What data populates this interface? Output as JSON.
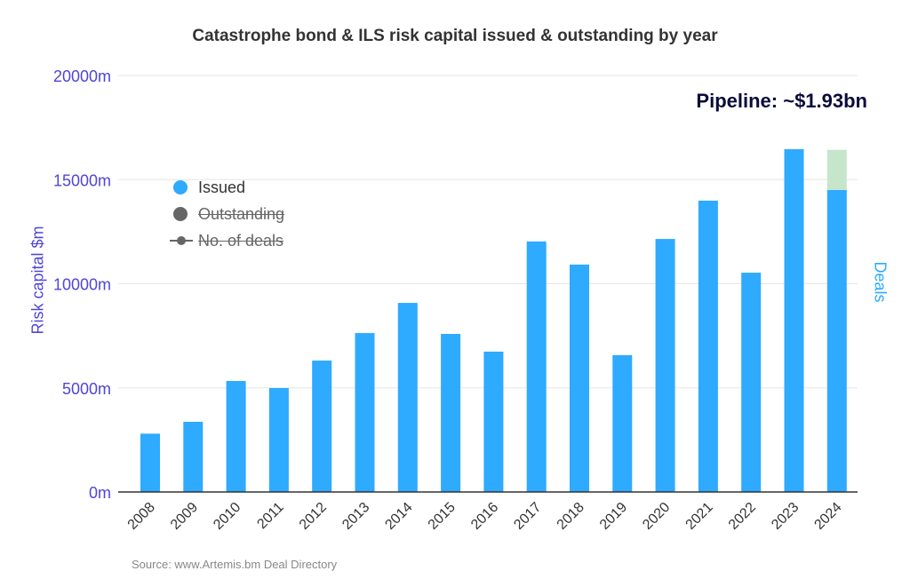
{
  "chart_data": {
    "type": "bar",
    "title": "Catastrophe bond & ILS risk capital issued & outstanding by year",
    "ylabel": "Risk capital $m",
    "y2label": "Deals",
    "ylim": [
      0,
      20000
    ],
    "yticks": [
      "0m",
      "5000m",
      "10000m",
      "15000m",
      "20000m"
    ],
    "yticks_values": [
      0,
      5000,
      10000,
      15000,
      20000
    ],
    "categories": [
      "2008",
      "2009",
      "2010",
      "2011",
      "2012",
      "2013",
      "2014",
      "2015",
      "2016",
      "2017",
      "2018",
      "2019",
      "2020",
      "2021",
      "2022",
      "2023",
      "2024"
    ],
    "series": [
      {
        "name": "Issued",
        "color": "#2eaaff",
        "values": [
          2800,
          3370,
          5330,
          4990,
          6310,
          7630,
          9080,
          7590,
          6740,
          12030,
          10920,
          6570,
          12150,
          13990,
          10530,
          16460,
          14500
        ]
      },
      {
        "name": "Pipeline",
        "color": "#c6e6cb",
        "values": [
          0,
          0,
          0,
          0,
          0,
          0,
          0,
          0,
          0,
          0,
          0,
          0,
          0,
          0,
          0,
          0,
          1930
        ]
      }
    ],
    "legend": [
      {
        "label": "Issued",
        "hidden": false
      },
      {
        "label": "Outstanding",
        "hidden": true
      },
      {
        "label": "No. of deals",
        "hidden": true
      }
    ],
    "legend_placement": "top-left",
    "annotation": "Pipeline: ~$1.93bn",
    "source": "Source: www.Artemis.bm Deal Directory",
    "grid": true
  }
}
